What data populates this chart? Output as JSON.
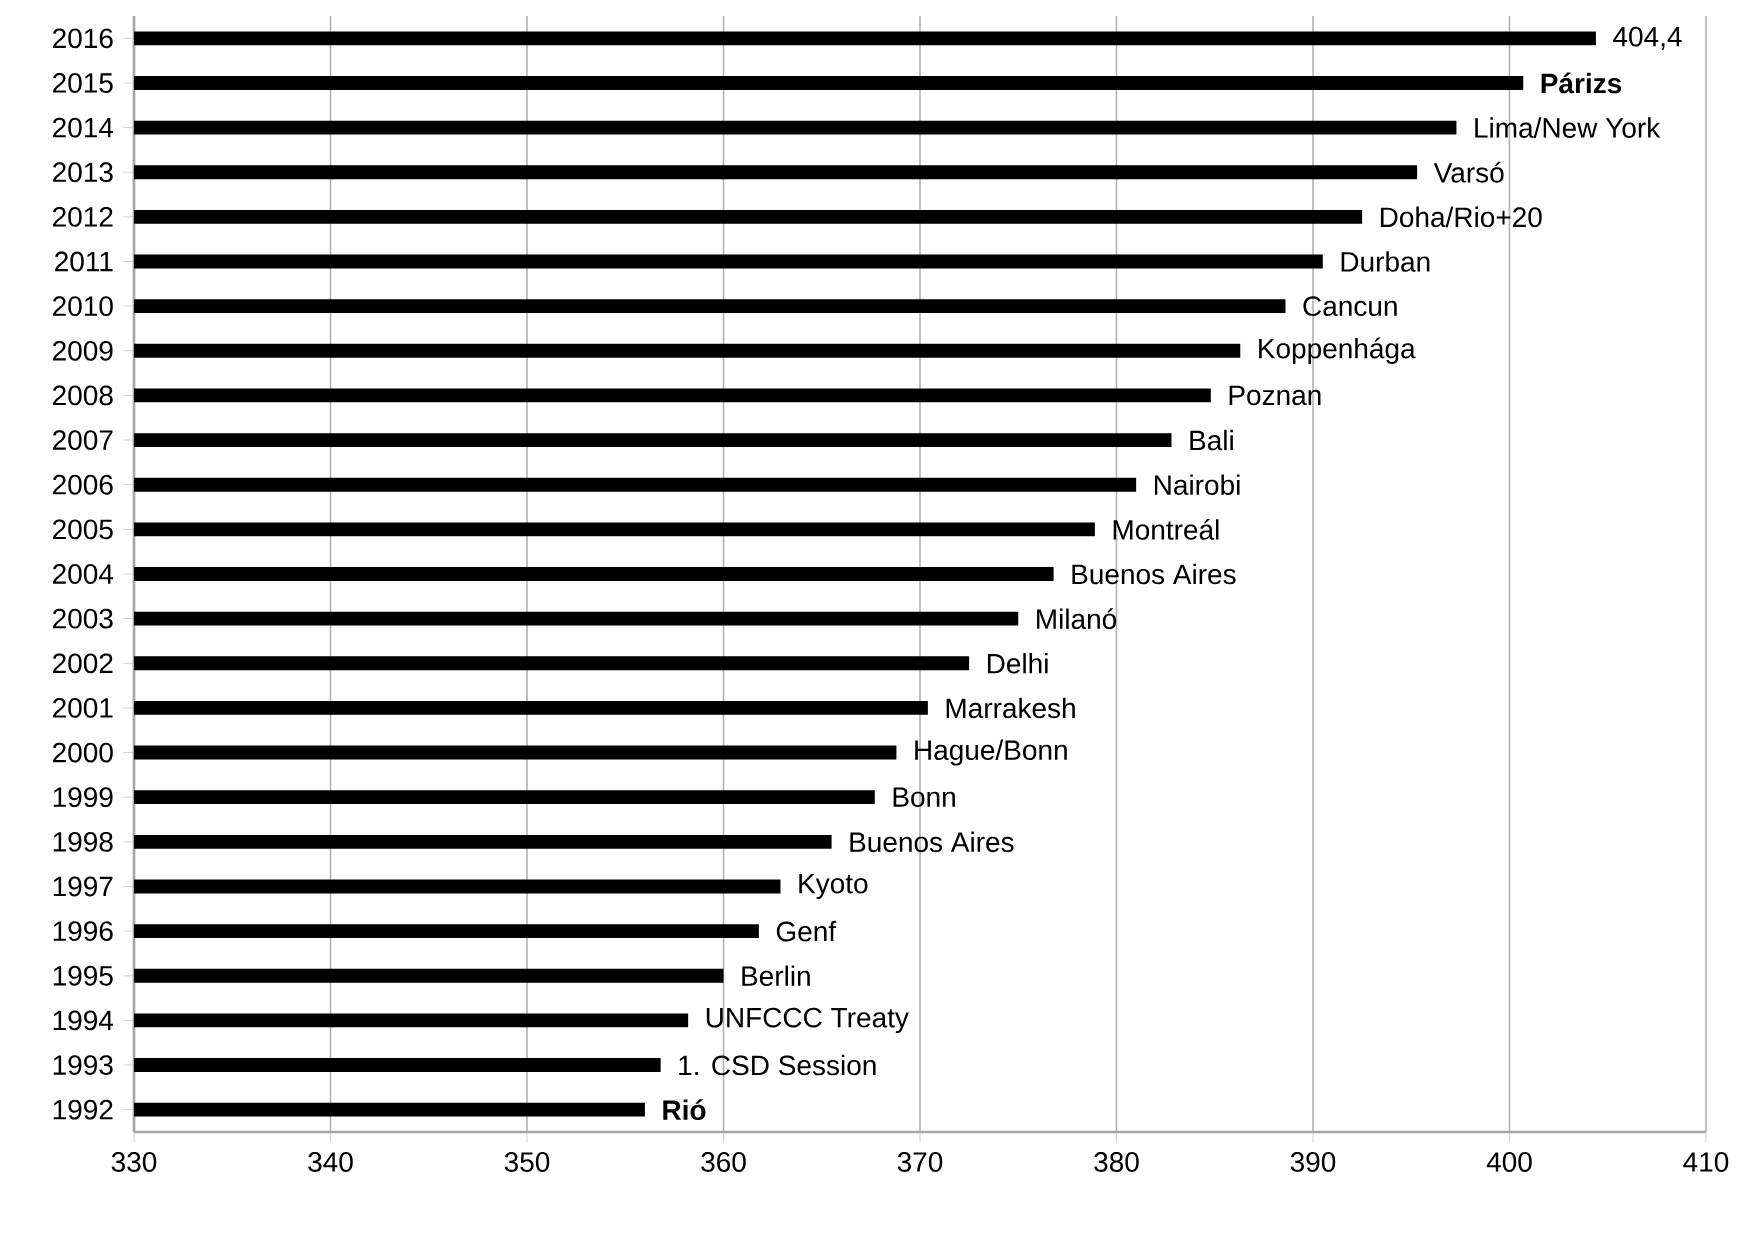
{
  "chart_data": {
    "type": "bar",
    "orientation": "horizontal",
    "color": "#000000",
    "grid": "x",
    "categories": [
      "2016",
      "2015",
      "2014",
      "2013",
      "2012",
      "2011",
      "2010",
      "2009",
      "2008",
      "2007",
      "2006",
      "2005",
      "2004",
      "2003",
      "2002",
      "2001",
      "2000",
      "1999",
      "1998",
      "1997",
      "1996",
      "1995",
      "1994",
      "1993",
      "1992"
    ],
    "values": [
      404.4,
      400.7,
      397.3,
      395.3,
      392.5,
      390.5,
      388.6,
      386.3,
      384.8,
      382.8,
      381.0,
      378.9,
      376.8,
      375.0,
      372.5,
      370.4,
      368.8,
      367.7,
      365.5,
      362.9,
      361.8,
      360.0,
      358.2,
      356.8,
      356.0
    ],
    "value_labels": [
      "404,4",
      null,
      null,
      null,
      null,
      null,
      null,
      null,
      null,
      null,
      null,
      null,
      null,
      null,
      null,
      null,
      null,
      null,
      null,
      null,
      null,
      null,
      null,
      null,
      null
    ],
    "xlim": [
      330,
      410
    ],
    "xticks": [
      330,
      340,
      350,
      360,
      370,
      380,
      390,
      400,
      410
    ],
    "annotations": [
      {
        "text": "**Párizs**",
        "x": 400.7,
        "y": "2015"
      },
      {
        "text": "Lima/New York",
        "x": 397.3,
        "y": "2014"
      },
      {
        "text": "Varsó",
        "x": 395.3,
        "y": "2013"
      },
      {
        "text": "Doha/Rio+20",
        "x": 392.5,
        "y": "2012"
      },
      {
        "text": "Durban",
        "x": 390.5,
        "y": "2011"
      },
      {
        "text": "Cancun",
        "x": 388.6,
        "y": "2010"
      },
      {
        "text": "Koppenhága",
        "x": 386.3,
        "y": "2009"
      },
      {
        "text": "Poznan",
        "x": 384.8,
        "y": "2008"
      },
      {
        "text": "Bali",
        "x": 382.8,
        "y": "2007"
      },
      {
        "text": "Nairobi",
        "x": 381.0,
        "y": "2006"
      },
      {
        "text": "Montreál",
        "x": 378.9,
        "y": "2005"
      },
      {
        "text": "Buenos Aires",
        "x": 376.8,
        "y": "2004"
      },
      {
        "text": "Milanó",
        "x": 375.0,
        "y": "2003"
      },
      {
        "text": "Delhi",
        "x": 372.5,
        "y": "2002"
      },
      {
        "text": "Marrakesh",
        "x": 370.4,
        "y": "2001"
      },
      {
        "text": "Hague/Bonn",
        "x": 368.8,
        "y": "2000"
      },
      {
        "text": "Bonn",
        "x": 367.7,
        "y": "1999"
      },
      {
        "text": "Buenos Aires",
        "x": 365.5,
        "y": "1998"
      },
      {
        "text": "Kyoto",
        "x": 362.9,
        "y": "1997"
      },
      {
        "text": "Genf",
        "x": 361.8,
        "y": "1996"
      },
      {
        "text": "Berlin",
        "x": 360.0,
        "y": "1995"
      },
      {
        "text": "UNFCCC Treaty",
        "x": 358.2,
        "y": "1994"
      },
      {
        "text": "1. CSD Session",
        "x": 356.8,
        "y": "1993"
      },
      {
        "text": "**Rió**",
        "x": 356.0,
        "y": "1992"
      }
    ]
  }
}
